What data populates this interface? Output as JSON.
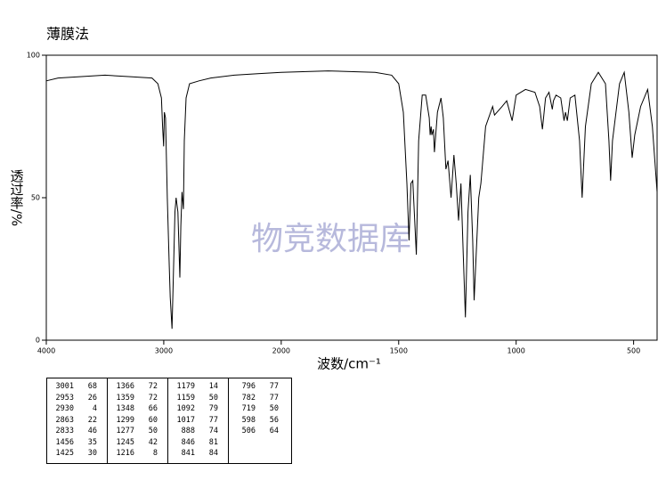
{
  "chart_data": {
    "type": "line",
    "title": "薄膜法",
    "xlabel": "波数/cm⁻¹",
    "ylabel": "透过率/%",
    "watermark": "物竞数据库",
    "xlim": [
      4000,
      400
    ],
    "x_scale_break": 2000,
    "x_scale_factor_below_break": 2,
    "xticks": [
      4000,
      3000,
      2000,
      1500,
      1000,
      500
    ],
    "ylim": [
      0,
      100
    ],
    "yticks": [
      0,
      50,
      100
    ],
    "color": "#000000",
    "x": [
      4000,
      3900,
      3700,
      3500,
      3300,
      3100,
      3050,
      3020,
      3010,
      3001,
      2995,
      2985,
      2970,
      2953,
      2945,
      2930,
      2920,
      2905,
      2895,
      2880,
      2863,
      2855,
      2845,
      2833,
      2825,
      2810,
      2780,
      2700,
      2600,
      2400,
      2200,
      2000,
      1800,
      1600,
      1530,
      1500,
      1480,
      1465,
      1456,
      1448,
      1440,
      1425,
      1415,
      1400,
      1385,
      1370,
      1366,
      1362,
      1359,
      1352,
      1348,
      1335,
      1320,
      1310,
      1299,
      1290,
      1277,
      1265,
      1255,
      1245,
      1235,
      1225,
      1216,
      1205,
      1195,
      1185,
      1179,
      1170,
      1159,
      1150,
      1130,
      1100,
      1092,
      1060,
      1040,
      1017,
      1000,
      960,
      920,
      900,
      888,
      875,
      860,
      846,
      841,
      830,
      810,
      796,
      790,
      782,
      770,
      750,
      730,
      719,
      705,
      680,
      650,
      620,
      605,
      598,
      590,
      560,
      540,
      520,
      506,
      495,
      470,
      440,
      420,
      400
    ],
    "values": [
      91,
      92,
      92.5,
      93,
      92.5,
      92,
      90,
      85,
      75,
      68,
      80,
      78,
      50,
      26,
      15,
      4,
      20,
      45,
      50,
      45,
      22,
      40,
      52,
      46,
      70,
      85,
      90,
      91,
      92,
      93,
      93.5,
      94,
      94.5,
      94,
      93,
      90,
      80,
      55,
      35,
      55,
      56,
      30,
      70,
      86,
      86,
      78,
      72,
      75,
      72,
      74,
      66,
      80,
      85,
      78,
      60,
      63,
      50,
      65,
      55,
      42,
      55,
      30,
      8,
      45,
      58,
      35,
      14,
      30,
      50,
      55,
      75,
      82,
      79,
      82,
      84,
      77,
      86,
      88,
      87,
      82,
      74,
      85,
      87,
      81,
      84,
      86,
      85,
      77,
      80,
      77,
      85,
      86,
      70,
      50,
      75,
      90,
      94,
      90,
      70,
      56,
      70,
      90,
      94,
      80,
      64,
      72,
      82,
      88,
      75,
      52
    ],
    "peak_table": [
      [
        [
          "3001",
          "68"
        ],
        [
          "2953",
          "26"
        ],
        [
          "2930",
          "4"
        ],
        [
          "2863",
          "22"
        ],
        [
          "2833",
          "46"
        ],
        [
          "1456",
          "35"
        ],
        [
          "1425",
          "30"
        ]
      ],
      [
        [
          "1366",
          "72"
        ],
        [
          "1359",
          "72"
        ],
        [
          "1348",
          "66"
        ],
        [
          "1299",
          "60"
        ],
        [
          "1277",
          "50"
        ],
        [
          "1245",
          "42"
        ],
        [
          "1216",
          "8"
        ]
      ],
      [
        [
          "1179",
          "14"
        ],
        [
          "1159",
          "50"
        ],
        [
          "1092",
          "79"
        ],
        [
          "1017",
          "77"
        ],
        [
          "888",
          "74"
        ],
        [
          "846",
          "81"
        ],
        [
          "841",
          "84"
        ]
      ],
      [
        [
          "796",
          "77"
        ],
        [
          "782",
          "77"
        ],
        [
          "719",
          "50"
        ],
        [
          "598",
          "56"
        ],
        [
          "506",
          "64"
        ]
      ]
    ]
  }
}
